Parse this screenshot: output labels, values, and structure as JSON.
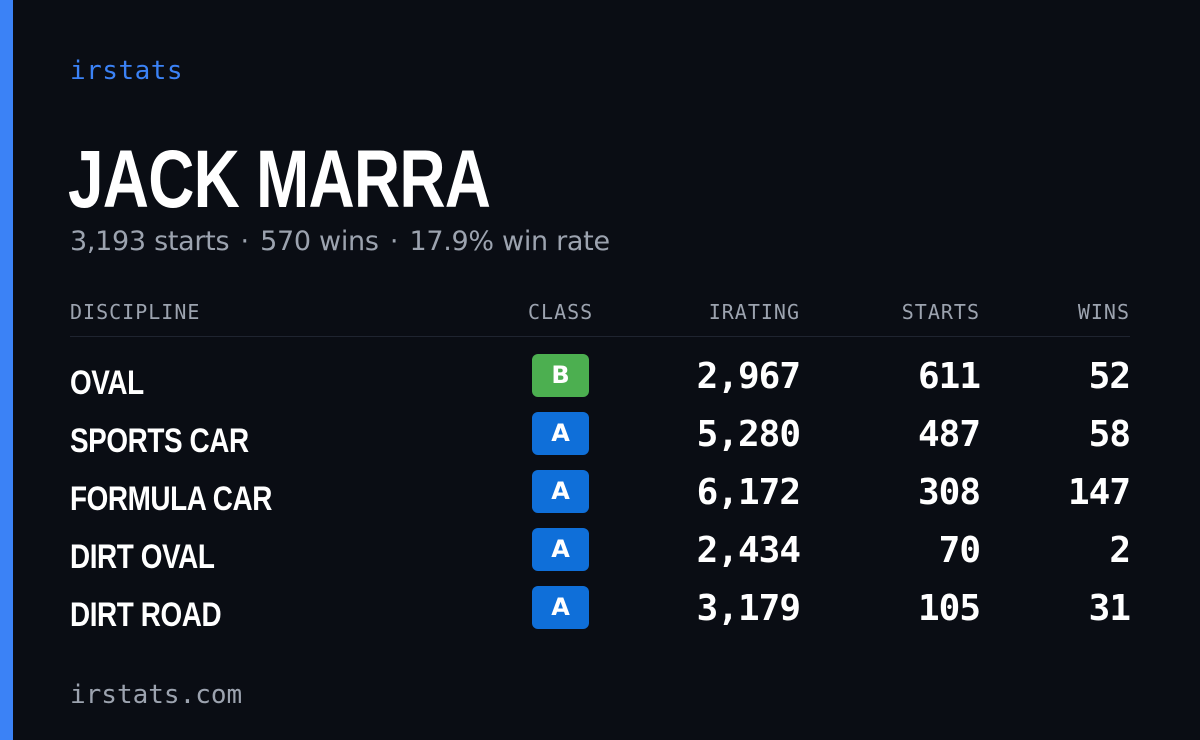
{
  "brand": "irstats",
  "driver": {
    "name": "JACK MARRA"
  },
  "summary": {
    "starts": "3,193 starts",
    "wins": "570 wins",
    "win_rate": "17.9% win rate",
    "separator": "·"
  },
  "table": {
    "headers": {
      "discipline": "DISCIPLINE",
      "class": "CLASS",
      "irating": "IRATING",
      "starts": "STARTS",
      "wins": "WINS"
    },
    "rows": [
      {
        "discipline": "OVAL",
        "class": "B",
        "irating": "2,967",
        "starts": "611",
        "wins": "52"
      },
      {
        "discipline": "SPORTS CAR",
        "class": "A",
        "irating": "5,280",
        "starts": "487",
        "wins": "58"
      },
      {
        "discipline": "FORMULA CAR",
        "class": "A",
        "irating": "6,172",
        "starts": "308",
        "wins": "147"
      },
      {
        "discipline": "DIRT OVAL",
        "class": "A",
        "irating": "2,434",
        "starts": "70",
        "wins": "2"
      },
      {
        "discipline": "DIRT ROAD",
        "class": "A",
        "irating": "3,179",
        "starts": "105",
        "wins": "31"
      }
    ]
  },
  "class_colors": {
    "A": "#0f6fd9",
    "B": "#4caf50"
  },
  "colors": {
    "accent": "#3b82f6",
    "background": "#0a0d14",
    "muted": "#9ca3af",
    "text": "#ffffff"
  },
  "footer": {
    "url": "irstats.com"
  }
}
